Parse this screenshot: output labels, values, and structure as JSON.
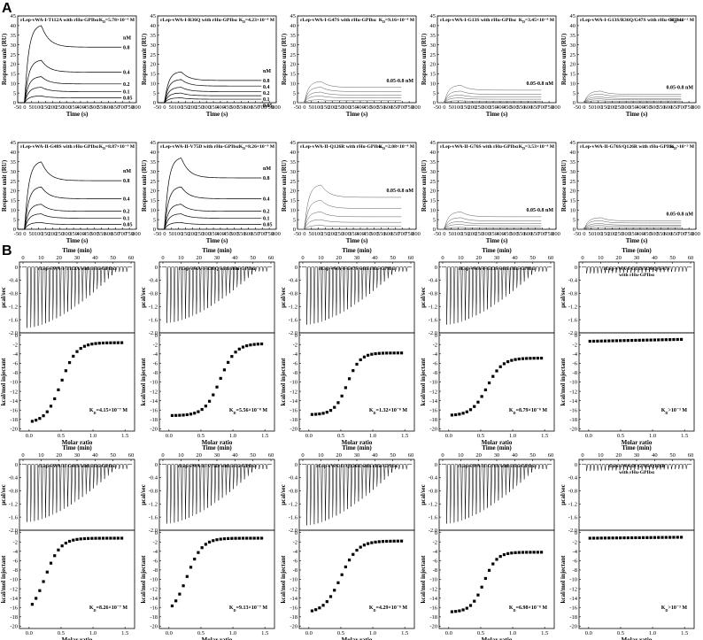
{
  "panels": {
    "a": "A",
    "b": "B"
  },
  "spr_axes": {
    "xlabel": "Time (s)",
    "ylabel": "Response unit (RU)",
    "xlim": [
      -50,
      800
    ],
    "ylim": [
      0,
      45
    ],
    "xticks": [
      -50,
      0,
      50,
      100,
      150,
      200,
      250,
      300,
      350,
      400,
      450,
      500,
      550,
      600,
      650,
      700,
      750,
      800
    ],
    "yticks": [
      0,
      5,
      10,
      15,
      20,
      25,
      30,
      35,
      40,
      45
    ],
    "conc_labels": [
      "nM",
      "0.8",
      "0.4",
      "0.2",
      "0.1",
      "0.05"
    ],
    "range_label": "0.05-0.8 nM"
  },
  "itc_axes": {
    "top_xlabel": "Time (min)",
    "top_xticks": [
      0,
      10,
      20,
      30,
      40,
      50,
      60
    ],
    "top_ylabel": "µcal/sec",
    "top_yticks": [
      "0",
      "-0.4",
      "-0.8",
      "-1.2",
      "-1.6",
      "-2.0"
    ],
    "top_ylim": [
      -2.0,
      0.15
    ],
    "bot_ylabel": "kcal/mol injectant",
    "bot_yticks": [
      0,
      -2,
      -4,
      -6,
      -8,
      -10,
      -12,
      -14,
      -16,
      -18,
      -20
    ],
    "bot_ylim": [
      -20.5,
      0.5
    ],
    "bot_xlabel": "Molar ratio",
    "bot_xticks": [
      "0.0",
      "0.5",
      "1.0",
      "1.5"
    ],
    "bot_xlim": [
      -0.15,
      1.65
    ]
  },
  "chart_data": [
    {
      "type": "line",
      "id": "spr-T112A",
      "title": "rLep-vWA-I-T112A with rHu-GPIbα",
      "kd": "KD=5.78×10⁻⁹ M",
      "series_style": "labeled",
      "series": [
        {
          "name": "0.8",
          "peak": 40
        },
        {
          "name": "0.4",
          "peak": 22
        },
        {
          "name": "0.2",
          "peak": 13.5
        },
        {
          "name": "0.1",
          "peak": 8
        },
        {
          "name": "0.05",
          "peak": 3.5
        }
      ]
    },
    {
      "type": "line",
      "id": "spr-R36Q",
      "title": "rLep-vWA-I-R36Q with rHu-GPIbα",
      "kd": "KD=4.23×10⁻⁸ M",
      "series_style": "labeled",
      "series": [
        {
          "name": "0.8",
          "peak": 16
        },
        {
          "name": "0.4",
          "peak": 12
        },
        {
          "name": "0.2",
          "peak": 8
        },
        {
          "name": "0.1",
          "peak": 5
        },
        {
          "name": "0.05",
          "peak": 2.5
        }
      ]
    },
    {
      "type": "line",
      "id": "spr-G47S",
      "title": "rLep-vWA-I-G47S with rHu-GPIbα",
      "kd": "KD=9.16×10⁻⁸ M",
      "series_style": "range",
      "series": [
        {
          "peak": 11
        },
        {
          "peak": 8
        },
        {
          "peak": 5.5
        },
        {
          "peak": 3.5
        },
        {
          "peak": 1.5
        }
      ]
    },
    {
      "type": "line",
      "id": "spr-G13S",
      "title": "rLep-vWA-I-G13S with rHu-GPIbα",
      "kd": "KD=3.45×10⁻⁸ M",
      "series_style": "range",
      "series": [
        {
          "peak": 9
        },
        {
          "peak": 6
        },
        {
          "peak": 4
        },
        {
          "peak": 2.5
        },
        {
          "peak": 1
        }
      ]
    },
    {
      "type": "line",
      "id": "spr-G13S-R36Q-G47S",
      "title": "rLep-vWA-I-G13S/R36Q/G47S with rHu-GPIbα",
      "kd": "KD>10⁻³ M",
      "series_style": "range",
      "series": [
        {
          "peak": 6
        },
        {
          "peak": 4.5
        },
        {
          "peak": 3
        },
        {
          "peak": 2
        },
        {
          "peak": 1
        }
      ]
    },
    {
      "type": "line",
      "id": "spr-G48S",
      "title": "rLep-vWA-II-G48S with rHu-GPIbα",
      "kd": "KD=8.87×10⁻⁹ M",
      "series_style": "labeled",
      "series": [
        {
          "name": "0.8",
          "peak": 35
        },
        {
          "name": "0.4",
          "peak": 22
        },
        {
          "name": "0.2",
          "peak": 13
        },
        {
          "name": "0.1",
          "peak": 8
        },
        {
          "name": "0.05",
          "peak": 3.5
        }
      ]
    },
    {
      "type": "line",
      "id": "spr-V75D",
      "title": "rLep-vWA-II-V75D with rHu-GPIbα",
      "kd": "KD=8.26×10⁻⁹ M",
      "series_style": "labeled",
      "series": [
        {
          "name": "0.8",
          "peak": 37
        },
        {
          "name": "0.4",
          "peak": 22
        },
        {
          "name": "0.2",
          "peak": 13
        },
        {
          "name": "0.1",
          "peak": 8
        },
        {
          "name": "0.05",
          "peak": 3.5
        }
      ]
    },
    {
      "type": "line",
      "id": "spr-Q126R",
      "title": "rLep-vWA-II-Q126R with rHu-GPIbα",
      "kd": "KD=2.08×10⁻⁸ M",
      "series_style": "range",
      "series": [
        {
          "peak": 23
        },
        {
          "peak": 15
        },
        {
          "peak": 9
        },
        {
          "peak": 5
        },
        {
          "peak": 2
        }
      ]
    },
    {
      "type": "line",
      "id": "spr-G76S",
      "title": "rLep-vWA-II-G76S with rHu-GPIbα",
      "kd": "KD=3.53×10⁻⁸ M",
      "series_style": "range",
      "series": [
        {
          "peak": 9
        },
        {
          "peak": 6
        },
        {
          "peak": 4
        },
        {
          "peak": 2.5
        },
        {
          "peak": 1
        }
      ]
    },
    {
      "type": "line",
      "id": "spr-G76S-Q126R",
      "title": "rLep-vWA-II-G76S/Q126R with rHu-GPIbα",
      "kd": "KD>10⁻³ M",
      "series_style": "range",
      "series": [
        {
          "peak": 6
        },
        {
          "peak": 4.5
        },
        {
          "peak": 3
        },
        {
          "peak": 2
        },
        {
          "peak": 1
        }
      ]
    },
    {
      "type": "scatter",
      "id": "itc-T112A",
      "title": [
        "rLep-vWA-I-T112A with rHu-GPIbα"
      ],
      "kd": "KD=4.15×10⁻⁷ M",
      "peak_amp": 1.85,
      "binding": true,
      "s": -18.8,
      "e": -1.6,
      "mid": 0.5,
      "w": 0.12,
      "xmin": 0.05
    },
    {
      "type": "scatter",
      "id": "itc-R36Q",
      "title": [
        "rLep-vWA-I-R36Q with rHu-GPIbα"
      ],
      "kd": "KD=5.56×10⁻⁸ M",
      "peak_amp": 1.7,
      "binding": true,
      "s": -17.2,
      "e": -1.8,
      "mid": 0.8,
      "w": 0.12,
      "xmin": 0.05
    },
    {
      "type": "scatter",
      "id": "itc-G47S",
      "title": [
        "rLep-vWA-I-G47S with rHu-GPIbα"
      ],
      "kd": "KD=1.32×10⁻⁸ M",
      "peak_amp": 1.75,
      "binding": true,
      "s": -17.0,
      "e": -3.8,
      "mid": 0.6,
      "w": 0.1,
      "xmin": 0.05
    },
    {
      "type": "scatter",
      "id": "itc-G13S",
      "title": [
        "rLep-vWA-I-G13S with rHu-GPIbα"
      ],
      "kd": "KD=8.79×10⁻⁸ M",
      "peak_amp": 1.75,
      "binding": true,
      "s": -17.2,
      "e": -4.9,
      "mid": 0.6,
      "w": 0.12,
      "xmin": 0.05
    },
    {
      "type": "scatter",
      "id": "itc-G13S-R36Q-G47S",
      "title": [
        "rLep-vWA-I-G13S/R36Q/G47S",
        "with rHu-GPIbα"
      ],
      "kd": "KD>10⁻³ M",
      "peak_amp": 0.22,
      "binding": false,
      "s": -1.3,
      "e": -0.9,
      "xmin": 0.02
    },
    {
      "type": "scatter",
      "id": "itc-G48S",
      "title": [
        "rLep-vWA-II-G48S with rHu-GPIbα"
      ],
      "kd": "KD=8.26×10⁻⁷ M",
      "peak_amp": 1.75,
      "binding": true,
      "s": -18.0,
      "e": -1.2,
      "mid": 0.25,
      "w": 0.12,
      "xmin": 0.05
    },
    {
      "type": "scatter",
      "id": "itc-V75D",
      "title": [
        "rLep-vWA-II-V75D with rHu-GPIbα"
      ],
      "kd": "KD=9.13×10⁻⁷ M",
      "peak_amp": 1.8,
      "binding": true,
      "s": -17.8,
      "e": -1.2,
      "mid": 0.28,
      "w": 0.12,
      "xmin": 0.05
    },
    {
      "type": "scatter",
      "id": "itc-Q126R",
      "title": [
        "rLep-vWA-II-Q126R with rHu-GPIbα"
      ],
      "kd": "KD=4.29×10⁻⁸ M",
      "peak_amp": 1.85,
      "binding": true,
      "s": -17.2,
      "e": -1.8,
      "mid": 0.5,
      "w": 0.13,
      "xmin": 0.05
    },
    {
      "type": "scatter",
      "id": "itc-G76S",
      "title": [
        "rLep-vWA-II-G76S with rHu-GPIbα"
      ],
      "kd": "KD=6.98×10⁻⁸ M",
      "peak_amp": 1.8,
      "binding": true,
      "s": -17.0,
      "e": -4.2,
      "mid": 0.55,
      "w": 0.1,
      "xmin": 0.05
    },
    {
      "type": "scatter",
      "id": "itc-G76S-Q126R",
      "title": [
        "rLep-vWA-II-G76S/Q126R",
        "with rHu-GPIbα"
      ],
      "kd": "KD>10⁻³ M",
      "peak_amp": 0.22,
      "binding": false,
      "s": -1.2,
      "e": -1.0,
      "xmin": 0.02
    }
  ]
}
